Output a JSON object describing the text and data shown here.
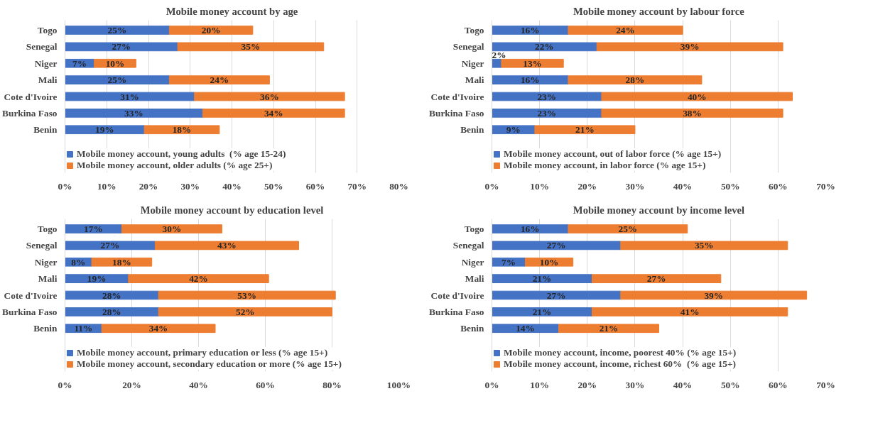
{
  "chart_data": [
    {
      "type": "bar",
      "orientation": "horizontal",
      "stacked": true,
      "title": "Mobile money account by age",
      "categories": [
        "Togo",
        "Senegal",
        "Niger",
        "Mali",
        "Cote d'Ivoire",
        "Burkina Faso",
        "Benin"
      ],
      "xlim": [
        0,
        80
      ],
      "xticks": [
        {
          "value": 0,
          "label": "0%"
        },
        {
          "value": 10,
          "label": "10%"
        },
        {
          "value": 20,
          "label": "20%"
        },
        {
          "value": 30,
          "label": "30%"
        },
        {
          "value": 40,
          "label": "40%"
        },
        {
          "value": 50,
          "label": "50%"
        },
        {
          "value": 60,
          "label": "60%"
        },
        {
          "value": 70,
          "label": "70%"
        },
        {
          "value": 80,
          "label": "80%"
        }
      ],
      "grid": "x",
      "legend": "bottom",
      "series": [
        {
          "name": "Mobile money account, young adults  (% age 15-24)",
          "color": "#4472c4",
          "values": [
            25,
            27,
            7,
            25,
            31,
            33,
            19
          ],
          "value_labels": [
            "25%",
            "27%",
            "7%",
            "25%",
            "31%",
            "33%",
            "19%"
          ]
        },
        {
          "name": "Mobile money account, older adults (% age 25+)",
          "color": "#ed7d31",
          "values": [
            20,
            35,
            10,
            24,
            36,
            34,
            18
          ],
          "value_labels": [
            "20%",
            "35%",
            "10%",
            "24%",
            "36%",
            "34%",
            "18%"
          ]
        }
      ]
    },
    {
      "type": "bar",
      "orientation": "horizontal",
      "stacked": true,
      "title": "Mobile money account by labour force",
      "categories": [
        "Togo",
        "Senegal",
        "Niger",
        "Mali",
        "Cote d'Ivoire",
        "Burkina Faso",
        "Benin"
      ],
      "xlim": [
        0,
        70
      ],
      "xticks": [
        {
          "value": 0,
          "label": "0%"
        },
        {
          "value": 10,
          "label": "10%"
        },
        {
          "value": 20,
          "label": "20%"
        },
        {
          "value": 30,
          "label": "30%"
        },
        {
          "value": 40,
          "label": "40%"
        },
        {
          "value": 50,
          "label": "50%"
        },
        {
          "value": 60,
          "label": "60%"
        },
        {
          "value": 70,
          "label": "70%"
        }
      ],
      "grid": "x",
      "legend": "bottom",
      "series": [
        {
          "name": "Mobile money account, out of labor force (% age 15+)",
          "color": "#4472c4",
          "values": [
            16,
            22,
            2,
            16,
            23,
            23,
            9
          ],
          "value_labels": [
            "16%",
            "22%",
            "2%",
            "16%",
            "23%",
            "23%",
            "9%"
          ]
        },
        {
          "name": "Mobile money account, in labor force (% age 15+)",
          "color": "#ed7d31",
          "values": [
            24,
            39,
            13,
            28,
            40,
            38,
            21
          ],
          "value_labels": [
            "24%",
            "39%",
            "13%",
            "28%",
            "40%",
            "38%",
            "21%"
          ]
        }
      ]
    },
    {
      "type": "bar",
      "orientation": "horizontal",
      "stacked": true,
      "title": "Mobile money account by education level",
      "categories": [
        "Togo",
        "Senegal",
        "Niger",
        "Mali",
        "Cote d'Ivoire",
        "Burkina Faso",
        "Benin"
      ],
      "xlim": [
        0,
        100
      ],
      "xticks": [
        {
          "value": 0,
          "label": "0%"
        },
        {
          "value": 20,
          "label": "20%"
        },
        {
          "value": 40,
          "label": "40%"
        },
        {
          "value": 60,
          "label": "60%"
        },
        {
          "value": 80,
          "label": "80%"
        },
        {
          "value": 100,
          "label": "100%"
        }
      ],
      "grid": "x",
      "legend": "bottom",
      "series": [
        {
          "name": "Mobile money account, primary education or less (% age 15+)",
          "color": "#4472c4",
          "values": [
            17,
            27,
            8,
            19,
            28,
            28,
            11
          ],
          "value_labels": [
            "17%",
            "27%",
            "8%",
            "19%",
            "28%",
            "28%",
            "11%"
          ]
        },
        {
          "name": "Mobile money account, secondary education or more (% age 15+)",
          "color": "#ed7d31",
          "values": [
            30,
            43,
            18,
            42,
            53,
            52,
            34
          ],
          "value_labels": [
            "30%",
            "43%",
            "18%",
            "42%",
            "53%",
            "52%",
            "34%"
          ]
        }
      ]
    },
    {
      "type": "bar",
      "orientation": "horizontal",
      "stacked": true,
      "title": "Mobile money account by income level",
      "categories": [
        "Togo",
        "Senegal",
        "Niger",
        "Mali",
        "Cote d'Ivoire",
        "Burkina Faso",
        "Benin"
      ],
      "xlim": [
        0,
        70
      ],
      "xticks": [
        {
          "value": 0,
          "label": "0%"
        },
        {
          "value": 10,
          "label": "10%"
        },
        {
          "value": 20,
          "label": "20%"
        },
        {
          "value": 30,
          "label": "30%"
        },
        {
          "value": 40,
          "label": "40%"
        },
        {
          "value": 50,
          "label": "50%"
        },
        {
          "value": 60,
          "label": "60%"
        },
        {
          "value": 70,
          "label": "70%"
        }
      ],
      "grid": "x",
      "legend": "bottom",
      "series": [
        {
          "name": "Mobile money account, income, poorest 40% (% age 15+)",
          "color": "#4472c4",
          "values": [
            16,
            27,
            7,
            21,
            27,
            21,
            14
          ],
          "value_labels": [
            "16%",
            "27%",
            "7%",
            "21%",
            "27%",
            "21%",
            "14%"
          ]
        },
        {
          "name": "Mobile money account, income, richest 60%  (% age 15+)",
          "color": "#ed7d31",
          "values": [
            25,
            35,
            10,
            27,
            39,
            41,
            21
          ],
          "value_labels": [
            "25%",
            "35%",
            "10%",
            "27%",
            "39%",
            "41%",
            "21%"
          ]
        }
      ]
    }
  ]
}
